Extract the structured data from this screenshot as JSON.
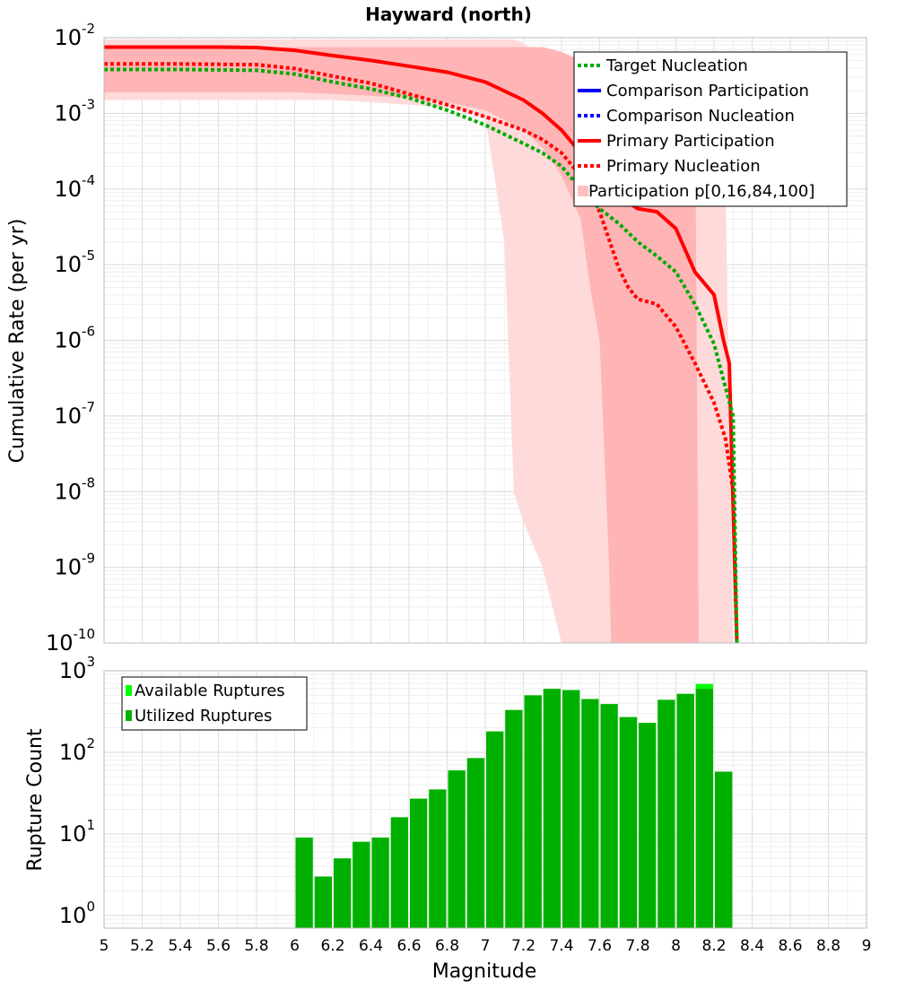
{
  "chart_data": [
    {
      "type": "line",
      "title": "Hayward (north)",
      "ylabel": "Cumulative Rate (per yr)",
      "xlabel": "",
      "xlim": [
        5,
        9
      ],
      "ylim": [
        1e-10,
        0.01
      ],
      "yscale": "log",
      "y_tick_labels": [
        {
          "base": "10",
          "exp": "-2"
        },
        {
          "base": "10",
          "exp": "-3"
        },
        {
          "base": "10",
          "exp": "-4"
        },
        {
          "base": "10",
          "exp": "-5"
        },
        {
          "base": "10",
          "exp": "-6"
        },
        {
          "base": "10",
          "exp": "-7"
        },
        {
          "base": "10",
          "exp": "-8"
        },
        {
          "base": "10",
          "exp": "-9"
        },
        {
          "base": "10",
          "exp": "-10"
        }
      ],
      "legend": {
        "position": "top-right",
        "entries": [
          {
            "label": "Target Nucleation",
            "color": "#00aa00",
            "style": "dotted"
          },
          {
            "label": "Comparison Participation",
            "color": "#0000ff",
            "style": "solid"
          },
          {
            "label": "Comparison Nucleation",
            "color": "#0000ff",
            "style": "dotted"
          },
          {
            "label": "Primary Participation",
            "color": "#ff0000",
            "style": "solid"
          },
          {
            "label": "Primary Nucleation",
            "color": "#ff0000",
            "style": "dotted"
          },
          {
            "label": "Participation p[0,16,84,100]",
            "color": "#ffc0c0",
            "style": "band"
          }
        ]
      },
      "bands": [
        {
          "name": "p0-p100",
          "color": "#ffdada",
          "x": [
            5.0,
            5.8,
            6.0,
            6.2,
            6.4,
            6.6,
            6.8,
            7.0,
            7.1,
            7.15,
            7.2,
            7.3,
            7.4,
            7.41,
            7.5,
            7.7,
            7.9,
            8.05,
            8.1,
            8.15,
            8.2,
            8.25,
            8.3
          ],
          "lower": [
            0.0015,
            0.0015,
            0.0015,
            0.0015,
            0.0014,
            0.0013,
            0.0012,
            0.0009,
            2e-05,
            1e-08,
            4e-09,
            1e-09,
            1e-10,
            1e-10,
            1e-10,
            1e-10,
            1e-10,
            1e-10,
            1e-10,
            1e-10,
            1e-10,
            1e-10,
            1e-10
          ],
          "upper": [
            0.0095,
            0.0095,
            0.0095,
            0.0095,
            0.0095,
            0.0095,
            0.0095,
            0.0095,
            0.0095,
            0.0095,
            0.0085,
            0.0055,
            0.0045,
            0.0045,
            0.0045,
            0.0045,
            0.0045,
            0.0045,
            0.0045,
            0.0045,
            0.0045,
            0.0045,
            1e-10
          ]
        },
        {
          "name": "p16-p84",
          "color": "#ffb5b5",
          "x": [
            5.0,
            5.8,
            6.0,
            6.2,
            6.4,
            6.6,
            6.8,
            7.0,
            7.2,
            7.3,
            7.4,
            7.5,
            7.55,
            7.6,
            7.65,
            7.66,
            7.8,
            8.0,
            8.1,
            8.12
          ],
          "lower": [
            0.0019,
            0.0019,
            0.0019,
            0.0018,
            0.0017,
            0.0016,
            0.0014,
            0.0011,
            0.0006,
            0.00035,
            0.00015,
            4e-05,
            5e-06,
            1e-06,
            1e-09,
            1e-10,
            1e-10,
            1e-10,
            1e-10,
            1e-10
          ],
          "upper": [
            0.0075,
            0.0075,
            0.0075,
            0.0075,
            0.0075,
            0.0075,
            0.0075,
            0.0075,
            0.0075,
            0.0075,
            0.0065,
            0.005,
            0.0045,
            0.004,
            0.0035,
            0.0035,
            0.0032,
            0.003,
            0.003,
            1e-10
          ]
        }
      ],
      "series": [
        {
          "name": "Primary Participation",
          "color": "#ff0000",
          "style": "solid",
          "x": [
            5.0,
            5.2,
            5.4,
            5.6,
            5.8,
            6.0,
            6.2,
            6.4,
            6.6,
            6.8,
            7.0,
            7.2,
            7.3,
            7.4,
            7.5,
            7.6,
            7.7,
            7.8,
            7.9,
            8.0,
            8.1,
            8.2,
            8.25,
            8.28,
            8.32
          ],
          "y": [
            0.0075,
            0.0075,
            0.0075,
            0.0075,
            0.0074,
            0.0068,
            0.0058,
            0.005,
            0.0042,
            0.0035,
            0.0026,
            0.0015,
            0.001,
            0.0006,
            0.0003,
            0.00015,
            8e-05,
            5.5e-05,
            5e-05,
            3e-05,
            8e-06,
            4e-06,
            1e-06,
            5e-07,
            1e-10
          ]
        },
        {
          "name": "Primary Nucleation",
          "color": "#ff0000",
          "style": "dotted",
          "x": [
            5.0,
            5.4,
            5.8,
            6.0,
            6.2,
            6.4,
            6.6,
            6.8,
            7.0,
            7.2,
            7.3,
            7.4,
            7.5,
            7.6,
            7.7,
            7.75,
            7.8,
            7.9,
            8.0,
            8.1,
            8.2,
            8.26,
            8.3,
            8.32
          ],
          "y": [
            0.0045,
            0.0045,
            0.0044,
            0.0039,
            0.0031,
            0.0025,
            0.0018,
            0.0013,
            0.0009,
            0.0006,
            0.00045,
            0.0003,
            0.00015,
            5e-05,
            9e-06,
            5e-06,
            3.5e-06,
            3e-06,
            1.5e-06,
            5e-07,
            1.5e-07,
            5e-08,
            1e-08,
            1e-10
          ]
        },
        {
          "name": "Target Nucleation",
          "color": "#00aa00",
          "style": "dotted",
          "x": [
            5.0,
            5.4,
            5.8,
            6.0,
            6.2,
            6.4,
            6.6,
            6.8,
            7.0,
            7.2,
            7.3,
            7.4,
            7.5,
            7.6,
            7.7,
            7.8,
            7.9,
            8.0,
            8.1,
            8.2,
            8.25,
            8.3,
            8.32
          ],
          "y": [
            0.0038,
            0.0038,
            0.0037,
            0.0033,
            0.0026,
            0.0021,
            0.0016,
            0.0011,
            0.0007,
            0.0004,
            0.0003,
            0.0002,
            0.0001,
            5.5e-05,
            3.5e-05,
            2e-05,
            1.3e-05,
            8e-06,
            3e-06,
            9e-07,
            3e-07,
            1e-07,
            1e-10
          ]
        }
      ]
    },
    {
      "type": "bar",
      "title": "",
      "xlabel": "Magnitude",
      "ylabel": "Rupture Count",
      "xlim": [
        5,
        9
      ],
      "ylim": [
        0.7,
        1000
      ],
      "yscale": "log",
      "x_tick_labels": [
        "5",
        "5.2",
        "5.4",
        "5.6",
        "5.8",
        "6",
        "6.2",
        "6.4",
        "6.6",
        "6.8",
        "7",
        "7.2",
        "7.4",
        "7.6",
        "7.8",
        "8",
        "8.2",
        "8.4",
        "8.6",
        "8.8",
        "9"
      ],
      "y_tick_labels": [
        {
          "base": "10",
          "exp": "0"
        },
        {
          "base": "10",
          "exp": "1"
        },
        {
          "base": "10",
          "exp": "2"
        },
        {
          "base": "10",
          "exp": "3"
        }
      ],
      "bin_width": 0.1,
      "legend": {
        "position": "top-left",
        "entries": [
          {
            "label": "Available Ruptures",
            "color": "#00ff00"
          },
          {
            "label": "Utilized Ruptures",
            "color": "#00b000"
          }
        ]
      },
      "series": [
        {
          "name": "Available Ruptures",
          "color": "#00ff00",
          "x": [
            6.05,
            6.15,
            6.25,
            6.35,
            6.45,
            6.55,
            6.65,
            6.75,
            6.85,
            6.95,
            7.05,
            7.15,
            7.25,
            7.35,
            7.45,
            7.55,
            7.65,
            7.75,
            7.85,
            7.95,
            8.05,
            8.15,
            8.25
          ],
          "values": [
            9,
            3,
            5,
            8,
            9,
            16,
            27,
            35,
            60,
            85,
            180,
            330,
            500,
            600,
            580,
            450,
            390,
            270,
            230,
            440,
            520,
            690,
            58
          ]
        },
        {
          "name": "Utilized Ruptures",
          "color": "#00b000",
          "x": [
            6.05,
            6.15,
            6.25,
            6.35,
            6.45,
            6.55,
            6.65,
            6.75,
            6.85,
            6.95,
            7.05,
            7.15,
            7.25,
            7.35,
            7.45,
            7.55,
            7.65,
            7.75,
            7.85,
            7.95,
            8.05,
            8.15,
            8.25
          ],
          "values": [
            9,
            3,
            5,
            8,
            9,
            16,
            27,
            35,
            60,
            85,
            180,
            330,
            500,
            600,
            580,
            450,
            390,
            270,
            230,
            440,
            520,
            600,
            58
          ]
        }
      ]
    }
  ]
}
